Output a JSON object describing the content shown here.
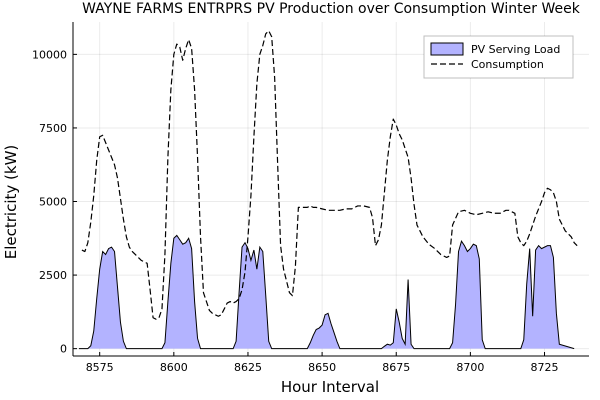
{
  "chart_data": {
    "type": "area",
    "title": "WAYNE FARMS ENTRPRS PV Production over Consumption Winter Week",
    "xlabel": "Hour Interval",
    "ylabel": "Electricity (kW)",
    "xlim": [
      8566,
      8740
    ],
    "ylim": [
      -250,
      11100
    ],
    "xticks": [
      8575,
      8600,
      8625,
      8650,
      8675,
      8700,
      8725
    ],
    "yticks": [
      0,
      2500,
      5000,
      7500,
      10000
    ],
    "xtick_labels": [
      "8575",
      "8600",
      "8625",
      "8650",
      "8675",
      "8700",
      "8725"
    ],
    "ytick_labels": [
      "0",
      "2500",
      "5000",
      "7500",
      "10000"
    ],
    "grid": true,
    "legend_position": "top-right",
    "legend": [
      "PV Serving Load",
      "Consumption"
    ],
    "series": [
      {
        "name": "PV Serving Load",
        "style": "filled area",
        "color": "#b3b3ff",
        "stroke": "#000000",
        "x": [
          8568,
          8571,
          8572,
          8573,
          8574,
          8575,
          8576,
          8577,
          8578,
          8579,
          8580,
          8581,
          8582,
          8583,
          8584,
          8590,
          8596,
          8597,
          8598,
          8599,
          8600,
          8601,
          8602,
          8603,
          8604,
          8605,
          8606,
          8607,
          8608,
          8609,
          8610,
          8618,
          8620,
          8621,
          8622,
          8623,
          8624,
          8625,
          8626,
          8627,
          8628,
          8629,
          8630,
          8631,
          8632,
          8633,
          8634,
          8645,
          8646,
          8647,
          8648,
          8649,
          8650,
          8651,
          8652,
          8653,
          8654,
          8655,
          8656,
          8665,
          8670,
          8671,
          8672,
          8673,
          8674,
          8675,
          8676,
          8677,
          8678,
          8679,
          8680,
          8681,
          8690,
          8693,
          8694,
          8695,
          8696,
          8697,
          8698,
          8699,
          8700,
          8701,
          8702,
          8703,
          8704,
          8705,
          8715,
          8717,
          8718,
          8719,
          8720,
          8721,
          8722,
          8723,
          8724,
          8725,
          8726,
          8727,
          8728,
          8729,
          8730,
          8735
        ],
        "values": [
          0,
          0,
          100,
          600,
          1700,
          2700,
          3300,
          3200,
          3400,
          3450,
          3300,
          2100,
          900,
          250,
          0,
          0,
          0,
          200,
          1600,
          2900,
          3750,
          3850,
          3700,
          3550,
          3600,
          3750,
          3400,
          1600,
          350,
          0,
          0,
          0,
          0,
          250,
          1900,
          3450,
          3600,
          3400,
          3000,
          3350,
          2700,
          3450,
          3300,
          1800,
          250,
          0,
          0,
          0,
          200,
          450,
          650,
          700,
          800,
          1150,
          1200,
          850,
          550,
          250,
          0,
          0,
          0,
          80,
          150,
          120,
          200,
          1350,
          900,
          350,
          150,
          2350,
          150,
          0,
          0,
          0,
          200,
          1500,
          3300,
          3650,
          3500,
          3300,
          3400,
          3550,
          3500,
          3050,
          300,
          0,
          0,
          0,
          300,
          2200,
          3400,
          1100,
          3350,
          3500,
          3400,
          3450,
          3500,
          3500,
          3100,
          1200,
          150,
          0
        ]
      },
      {
        "name": "Consumption",
        "style": "dashed line",
        "color": "#000000",
        "x": [
          8569,
          8570,
          8571,
          8572,
          8573,
          8574,
          8575,
          8576,
          8577,
          8578,
          8579,
          8580,
          8581,
          8582,
          8583,
          8584,
          8585,
          8586,
          8587,
          8588,
          8589,
          8590,
          8591,
          8592,
          8593,
          8594,
          8595,
          8596,
          8597,
          8598,
          8599,
          8600,
          8601,
          8602,
          8603,
          8604,
          8605,
          8606,
          8607,
          8608,
          8609,
          8610,
          8611,
          8612,
          8613,
          8614,
          8615,
          8616,
          8617,
          8618,
          8619,
          8620,
          8621,
          8622,
          8623,
          8624,
          8625,
          8626,
          8627,
          8628,
          8629,
          8630,
          8631,
          8632,
          8633,
          8634,
          8635,
          8636,
          8637,
          8638,
          8639,
          8640,
          8641,
          8642,
          8643,
          8644,
          8645,
          8646,
          8647,
          8648,
          8650,
          8652,
          8654,
          8656,
          8658,
          8660,
          8662,
          8664,
          8666,
          8667,
          8668,
          8669,
          8670,
          8671,
          8672,
          8673,
          8674,
          8675,
          8676,
          8677,
          8678,
          8679,
          8680,
          8681,
          8682,
          8684,
          8686,
          8688,
          8689,
          8690,
          8691,
          8692,
          8693,
          8694,
          8696,
          8698,
          8700,
          8702,
          8704,
          8706,
          8708,
          8710,
          8712,
          8713,
          8714,
          8715,
          8716,
          8717,
          8718,
          8719,
          8720,
          8722,
          8724,
          8725,
          8726,
          8727,
          8728,
          8729,
          8730,
          8732,
          8734,
          8735,
          8736
        ],
        "values": [
          3350,
          3300,
          3600,
          4300,
          5200,
          6400,
          7200,
          7250,
          7000,
          6750,
          6500,
          6250,
          5800,
          5100,
          4400,
          3800,
          3450,
          3300,
          3200,
          3100,
          3000,
          2950,
          2900,
          2000,
          1050,
          1000,
          1050,
          1350,
          3200,
          6500,
          8800,
          10000,
          10350,
          10250,
          9800,
          10200,
          10500,
          10200,
          8800,
          6500,
          3800,
          1900,
          1600,
          1300,
          1200,
          1150,
          1100,
          1150,
          1350,
          1550,
          1600,
          1550,
          1600,
          1700,
          2000,
          2600,
          3800,
          5200,
          7200,
          9000,
          10000,
          10300,
          10700,
          10800,
          10600,
          9200,
          6300,
          3500,
          2700,
          2300,
          1900,
          1800,
          2800,
          4800,
          4800,
          4800,
          4800,
          4850,
          4800,
          4800,
          4750,
          4700,
          4700,
          4700,
          4750,
          4750,
          4850,
          4850,
          4800,
          4450,
          3500,
          3700,
          4200,
          5300,
          6400,
          7200,
          7800,
          7600,
          7300,
          7100,
          6800,
          6500,
          5800,
          4900,
          4200,
          3800,
          3550,
          3400,
          3300,
          3200,
          3150,
          3100,
          3150,
          4200,
          4650,
          4700,
          4600,
          4550,
          4600,
          4650,
          4600,
          4600,
          4700,
          4700,
          4650,
          4600,
          3800,
          3600,
          3500,
          3650,
          3900,
          4500,
          5000,
          5300,
          5450,
          5400,
          5300,
          5000,
          4400,
          4000,
          3800,
          3600,
          3500
        ]
      }
    ]
  }
}
